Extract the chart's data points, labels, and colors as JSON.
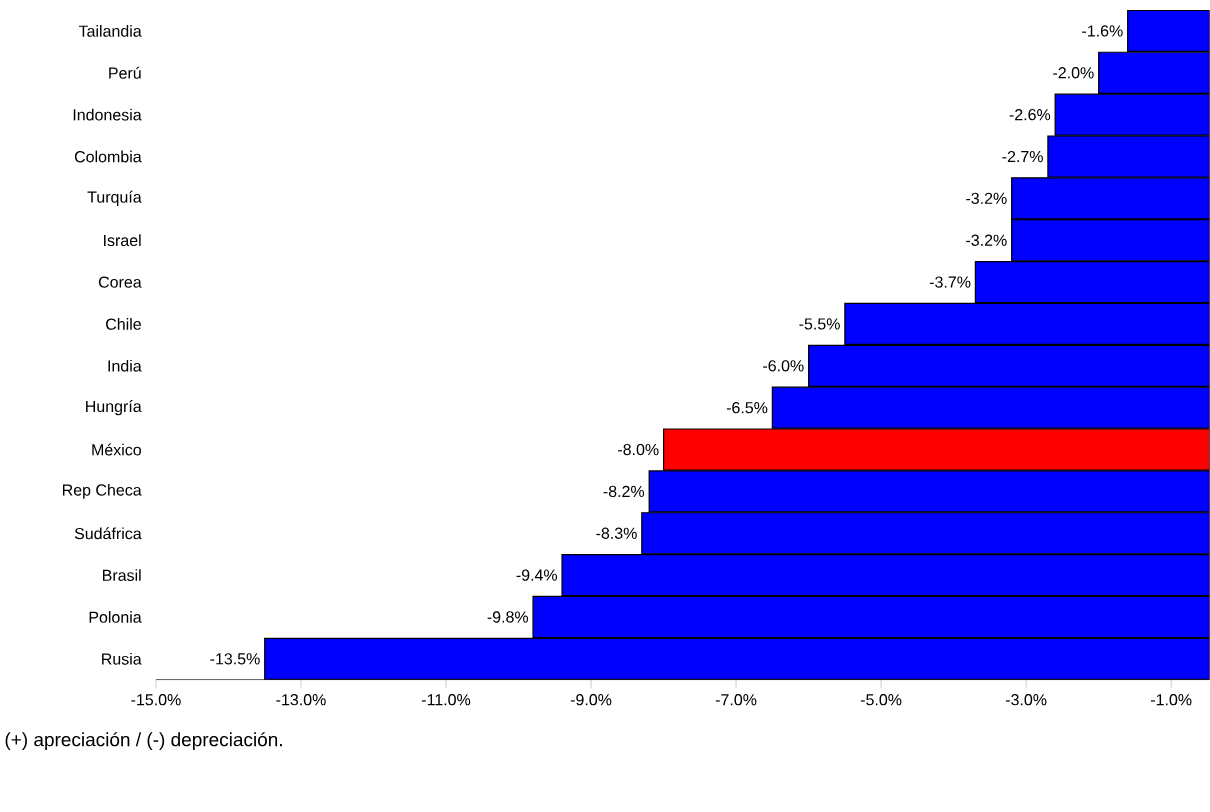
{
  "chart_data": {
    "type": "bar",
    "orientation": "horizontal",
    "categories": [
      "Tailandia",
      "Perú",
      "Indonesia",
      "Colombia",
      "Turquía",
      "Israel",
      "Corea",
      "Chile",
      "India",
      "Hungría",
      "México",
      "Rep Checa",
      "Sudáfrica",
      "Brasil",
      "Polonia",
      "Rusia"
    ],
    "values": [
      -1.6,
      -2.0,
      -2.6,
      -2.7,
      -3.2,
      -3.2,
      -3.7,
      -5.5,
      -6.0,
      -6.5,
      -8.0,
      -8.2,
      -8.3,
      -9.4,
      -9.8,
      -13.5
    ],
    "value_labels": [
      "-1.6%",
      "-2.0%",
      "-2.6%",
      "-2.7%",
      "-3.2%",
      "-3.2%",
      "-3.7%",
      "-5.5%",
      "-6.0%",
      "-6.5%",
      "-8.0%",
      "-8.2%",
      "-8.3%",
      "-9.4%",
      "-9.8%",
      "-13.5%"
    ],
    "colors": [
      "#0000ff",
      "#0000ff",
      "#0000ff",
      "#0000ff",
      "#0000ff",
      "#0000ff",
      "#0000ff",
      "#0000ff",
      "#0000ff",
      "#0000ff",
      "#ff0000",
      "#0000ff",
      "#0000ff",
      "#0000ff",
      "#0000ff",
      "#0000ff"
    ],
    "xlim": [
      -15,
      -0.47
    ],
    "xticks": [
      {
        "value": -15,
        "label": "-15.0%"
      },
      {
        "value": -13,
        "label": "-13.0%"
      },
      {
        "value": -11,
        "label": "-11.0%"
      },
      {
        "value": -9,
        "label": "-9.0%"
      },
      {
        "value": -7,
        "label": "-7.0%"
      },
      {
        "value": -5,
        "label": "-5.0%"
      },
      {
        "value": -3,
        "label": "-3.0%"
      },
      {
        "value": -1,
        "label": "-1.0%"
      }
    ],
    "grid": false,
    "annotations": [
      "(+) apreciación / (-) depreciación."
    ]
  }
}
